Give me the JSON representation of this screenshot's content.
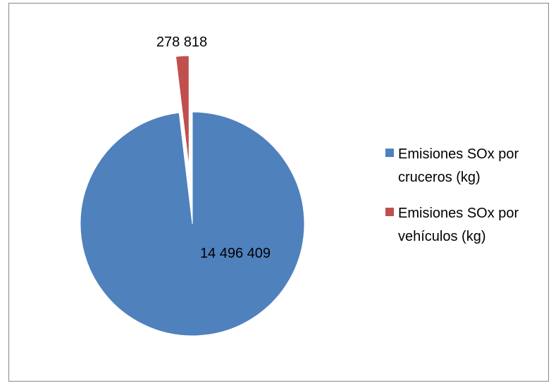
{
  "chart_data": {
    "type": "pie",
    "title": "",
    "series": [
      {
        "name": "",
        "categories": [
          "Emisiones SOx por cruceros (kg)",
          "Emisiones SOx por vehículos (kg)"
        ],
        "values": [
          14496409,
          278818
        ]
      }
    ],
    "data_labels": [
      "14 496 409",
      "278 818"
    ],
    "colors": [
      "#4f81bd",
      "#c0504d"
    ],
    "exploded_slice": 1,
    "legend_position": "right",
    "legend": [
      {
        "line1": "Emisiones SOx por",
        "line2": "cruceros (kg)"
      },
      {
        "line1": "Emisiones SOx por",
        "line2": "vehículos (kg)"
      }
    ]
  }
}
